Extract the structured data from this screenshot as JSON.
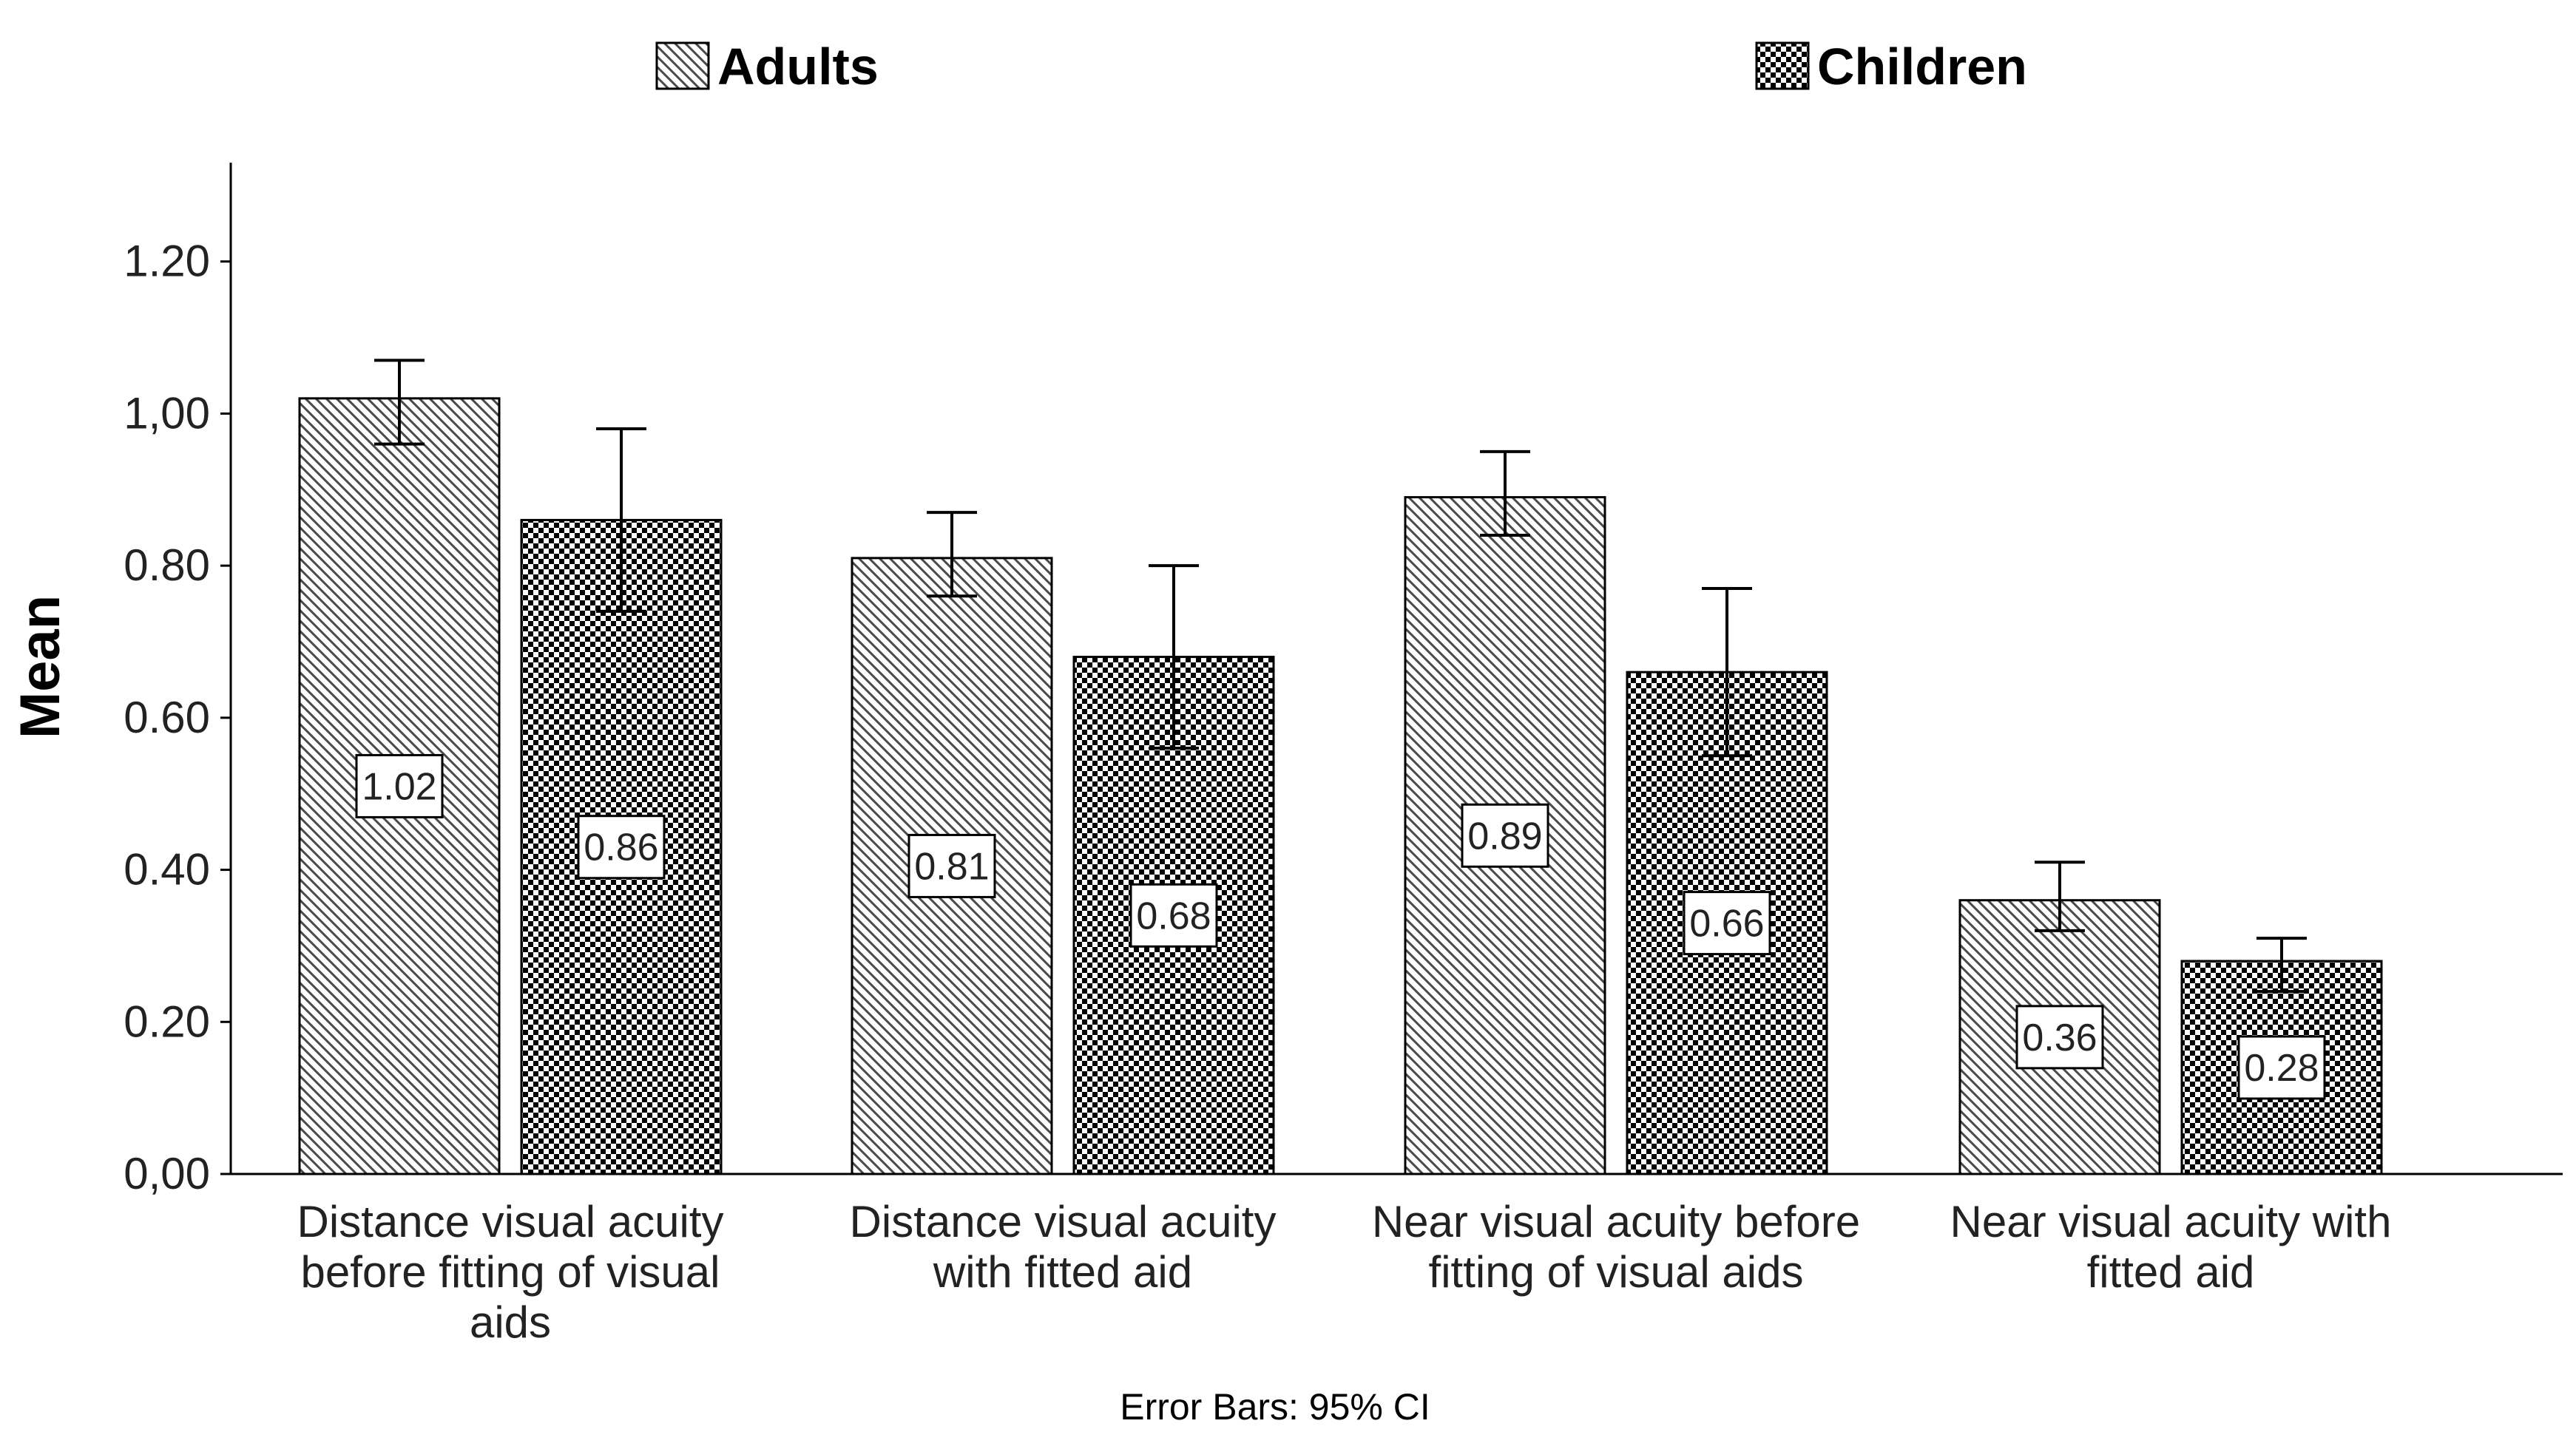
{
  "chart_data": {
    "type": "bar",
    "title": "",
    "xlabel": "",
    "ylabel": "Mean",
    "ylim": [
      0,
      1.33
    ],
    "yticks": [
      0,
      0.2,
      0.4,
      0.6,
      0.8,
      1.0,
      1.2
    ],
    "ytick_labels": [
      "0,00",
      "0.20",
      "0.40",
      "0.60",
      "0.80",
      "1,00",
      "1.20"
    ],
    "grid": false,
    "legend_position": "top",
    "footnote": "Error Bars: 95% CI",
    "categories": [
      [
        "Distance visual acuity",
        "before fitting of visual",
        "aids"
      ],
      [
        "Distance visual acuity",
        "with fitted aid"
      ],
      [
        "Near visual acuity before",
        "fitting of visual aids"
      ],
      [
        "Near visual acuity with",
        "fitted aid"
      ]
    ],
    "series": [
      {
        "name": "Adults",
        "pattern": "diagonal-hatch",
        "values": [
          1.02,
          0.81,
          0.89,
          0.36
        ],
        "value_labels": [
          "1.02",
          "0.81",
          "0.89",
          "0.36"
        ],
        "ci_lower": [
          0.96,
          0.76,
          0.84,
          0.32
        ],
        "ci_upper": [
          1.07,
          0.87,
          0.95,
          0.41
        ]
      },
      {
        "name": "Children",
        "pattern": "checkerboard",
        "values": [
          0.86,
          0.68,
          0.66,
          0.28
        ],
        "value_labels": [
          "0.86",
          "0.68",
          "0.66",
          "0.28"
        ],
        "ci_lower": [
          0.74,
          0.56,
          0.55,
          0.24
        ],
        "ci_upper": [
          0.98,
          0.8,
          0.77,
          0.31
        ]
      }
    ]
  }
}
